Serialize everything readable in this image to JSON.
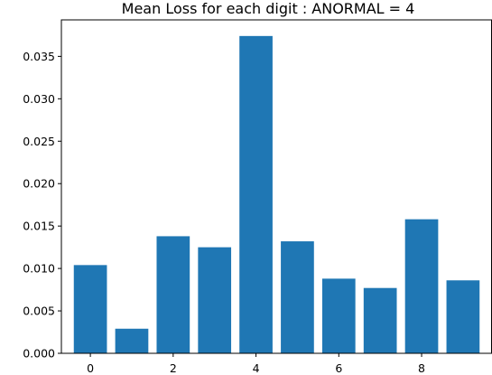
{
  "chart_data": {
    "type": "bar",
    "title": "Mean Loss for each digit : ANORMAL = 4",
    "xlabel": "",
    "ylabel": "",
    "categories": [
      0,
      1,
      2,
      3,
      4,
      5,
      6,
      7,
      8,
      9
    ],
    "values": [
      0.0104,
      0.0029,
      0.0138,
      0.0125,
      0.0374,
      0.0132,
      0.0088,
      0.0077,
      0.0158,
      0.0086
    ],
    "bar_color": "#1f77b4",
    "xlim": [
      -0.7,
      9.7
    ],
    "ylim": [
      0,
      0.0393
    ],
    "xticks": [
      0,
      2,
      4,
      6,
      8
    ],
    "xtick_labels": [
      "0",
      "2",
      "4",
      "6",
      "8"
    ],
    "yticks": [
      0,
      0.005,
      0.01,
      0.015,
      0.02,
      0.025,
      0.03,
      0.035
    ],
    "ytick_labels": [
      "0.000",
      "0.005",
      "0.010",
      "0.015",
      "0.020",
      "0.025",
      "0.030",
      "0.035"
    ],
    "grid": false,
    "legend": "none"
  }
}
